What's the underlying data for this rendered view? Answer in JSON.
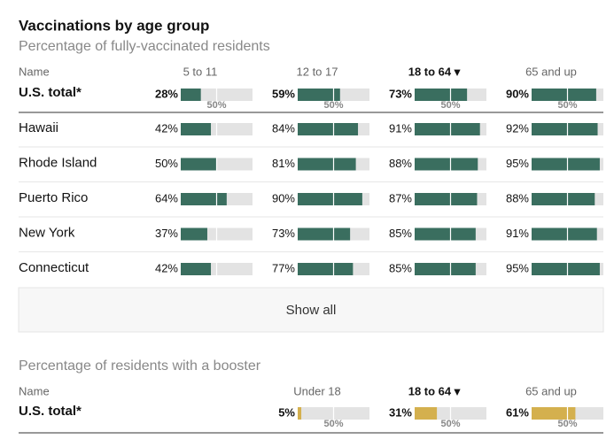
{
  "title": "Vaccinations by age group",
  "scale": [
    0,
    100
  ],
  "marker": {
    "value": 50,
    "label": "50%"
  },
  "full": {
    "subtitle": "Percentage of fully-vaccinated residents",
    "name_header": "Name",
    "columns": [
      "5 to 11",
      "12 to 17",
      "18 to 64",
      "65 and up"
    ],
    "sorted_column": 2,
    "color": "#3a6e5f",
    "total": {
      "name": "U.S. total*",
      "values": [
        28,
        59,
        73,
        90
      ],
      "value_labels": [
        "28%",
        "59%",
        "73%",
        "90%"
      ]
    },
    "rows": [
      {
        "name": "Hawaii",
        "values": [
          42,
          84,
          91,
          92
        ],
        "value_labels": [
          "42%",
          "84%",
          "91%",
          "92%"
        ]
      },
      {
        "name": "Rhode Island",
        "values": [
          50,
          81,
          88,
          95
        ],
        "value_labels": [
          "50%",
          "81%",
          "88%",
          "95%"
        ]
      },
      {
        "name": "Puerto Rico",
        "values": [
          64,
          90,
          87,
          88
        ],
        "value_labels": [
          "64%",
          "90%",
          "87%",
          "88%"
        ]
      },
      {
        "name": "New York",
        "values": [
          37,
          73,
          85,
          91
        ],
        "value_labels": [
          "37%",
          "73%",
          "85%",
          "91%"
        ]
      },
      {
        "name": "Connecticut",
        "values": [
          42,
          77,
          85,
          95
        ],
        "value_labels": [
          "42%",
          "77%",
          "85%",
          "95%"
        ]
      }
    ],
    "show_all": "Show all"
  },
  "booster": {
    "subtitle": "Percentage of residents with a booster",
    "name_header": "Name",
    "columns": [
      "Under 18",
      "18 to 64",
      "65 and up"
    ],
    "sorted_column": 1,
    "color": "#d4b04e",
    "total": {
      "name": "U.S. total*",
      "values": [
        5,
        31,
        61
      ],
      "value_labels": [
        "5%",
        "31%",
        "61%"
      ]
    }
  }
}
